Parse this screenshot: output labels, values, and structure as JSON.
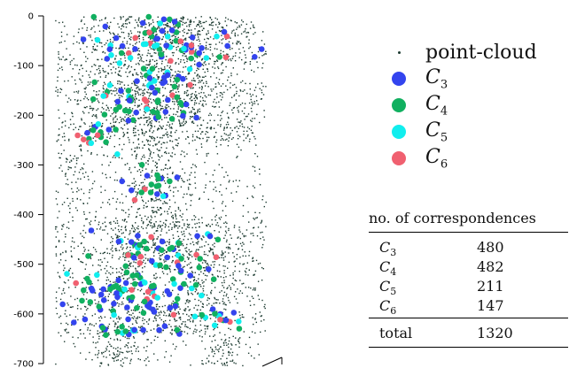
{
  "chart_data": {
    "type": "scatter",
    "title": "",
    "xlabel": "",
    "ylabel": "",
    "ylim": [
      -700,
      0
    ],
    "yticks": [
      0,
      -100,
      -200,
      -300,
      -400,
      -500,
      -600,
      -700
    ],
    "ytick_labels": [
      "0",
      "-100",
      "-200",
      "-300",
      "-400",
      "-500",
      "-600",
      "-700"
    ],
    "xlim": [
      0,
      100
    ],
    "grid": false,
    "legend_position": "right",
    "series": [
      {
        "name": "point-cloud",
        "color": "#1c3a30",
        "marker": "small-dot"
      },
      {
        "name": "C3",
        "color": "#3344ee",
        "marker": "large-dot"
      },
      {
        "name": "C4",
        "color": "#11b060",
        "marker": "large-dot"
      },
      {
        "name": "C5",
        "color": "#11eeee",
        "marker": "large-dot"
      },
      {
        "name": "C6",
        "color": "#f06070",
        "marker": "large-dot"
      }
    ]
  },
  "legend": {
    "items": [
      {
        "symbol": "",
        "sub": "",
        "label": "point-cloud",
        "color": "#1c3a30",
        "dot": 3
      },
      {
        "symbol": "C",
        "sub": "3",
        "label": "",
        "color": "#3344ee",
        "dot": 16
      },
      {
        "symbol": "C",
        "sub": "4",
        "label": "",
        "color": "#11b060",
        "dot": 16
      },
      {
        "symbol": "C",
        "sub": "5",
        "label": "",
        "color": "#11eeee",
        "dot": 16
      },
      {
        "symbol": "C",
        "sub": "6",
        "label": "",
        "color": "#f06070",
        "dot": 16
      }
    ]
  },
  "table": {
    "header": "no. of correspondences",
    "rows": [
      {
        "symbol": "C",
        "sub": "3",
        "value": "480"
      },
      {
        "symbol": "C",
        "sub": "4",
        "value": "482"
      },
      {
        "symbol": "C",
        "sub": "5",
        "value": "211"
      },
      {
        "symbol": "C",
        "sub": "6",
        "value": "147"
      }
    ],
    "total_label": "total",
    "total_value": "1320"
  }
}
